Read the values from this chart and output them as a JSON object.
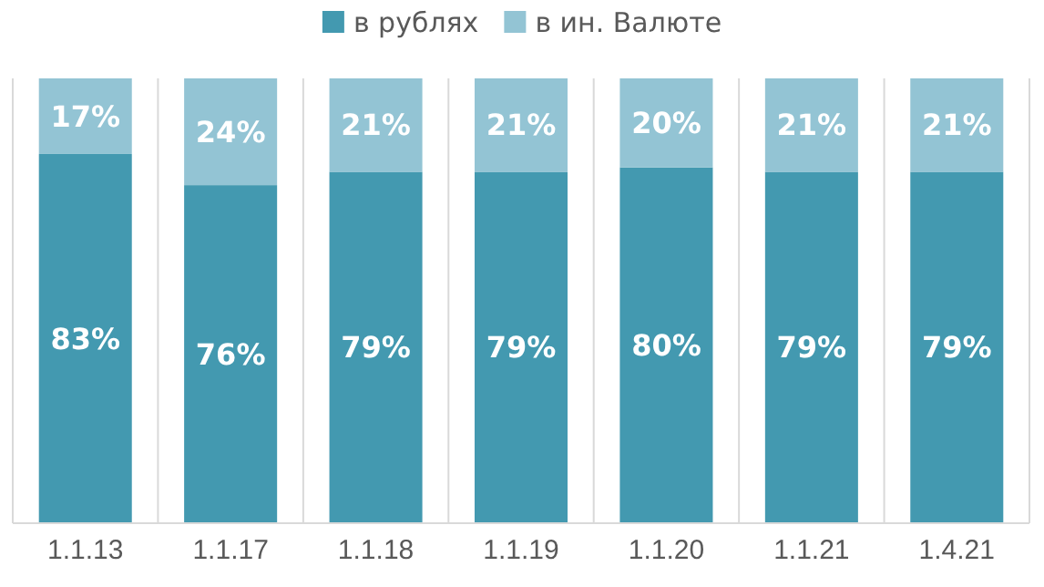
{
  "chart_data": {
    "type": "bar",
    "stacked": true,
    "categories": [
      "1.1.13",
      "1.1.17",
      "1.1.18",
      "1.1.19",
      "1.1.20",
      "1.1.21",
      "1.4.21"
    ],
    "series": [
      {
        "name": "в рублях",
        "color": "#4399b0",
        "values": [
          83,
          76,
          79,
          79,
          80,
          79,
          79
        ],
        "value_labels": [
          "83%",
          "76%",
          "79%",
          "79%",
          "80%",
          "79%",
          "79%"
        ]
      },
      {
        "name": "в ин. Валюте",
        "color": "#93c4d4",
        "values": [
          17,
          24,
          21,
          21,
          20,
          21,
          21
        ],
        "value_labels": [
          "17%",
          "24%",
          "21%",
          "21%",
          "20%",
          "21%",
          "21%"
        ]
      }
    ],
    "tick_labels": "x",
    "legend": "top",
    "grid": "x"
  }
}
